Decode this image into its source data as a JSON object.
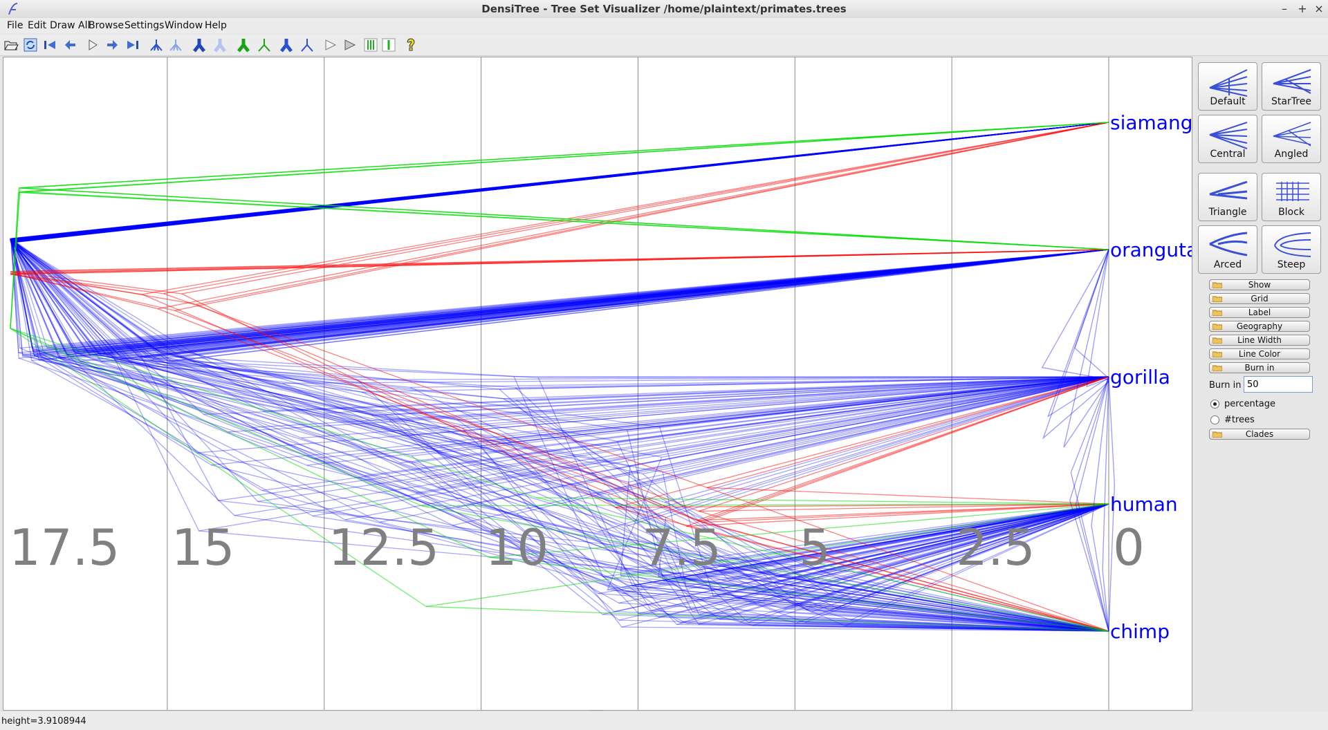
{
  "window": {
    "title": "DensiTree - Tree Set Visualizer /home/plaintext/primates.trees",
    "buttons": [
      "–",
      "+",
      "×"
    ]
  },
  "menu": [
    "File",
    "Edit",
    "Draw All",
    "Browse",
    "Settings",
    "Window",
    "Help"
  ],
  "toolbar_icons": [
    "open-folder-icon",
    "reload-icon",
    "first-tree-icon",
    "previous-tree-icon",
    "play-icon",
    "next-tree-icon",
    "last-tree-icon",
    "tree-blue-icon",
    "tree-light-blue-icon",
    "tree-dark-blue-icon",
    "tree-pale-blue-icon",
    "tree-green-icon",
    "tree-green-outline-icon",
    "tree-blue-root-icon",
    "tree-blue-outline-icon",
    "triangle-flat-icon",
    "triangle-gray-icon",
    "green-bars-icon",
    "green-line-icon",
    "help-icon"
  ],
  "chart": {
    "axis_ticks": [
      {
        "value": 17.5,
        "label": "17.5"
      },
      {
        "value": 15,
        "label": "15"
      },
      {
        "value": 12.5,
        "label": "12.5"
      },
      {
        "value": 10,
        "label": "10"
      },
      {
        "value": 7.5,
        "label": "7.5"
      },
      {
        "value": 5,
        "label": "5"
      },
      {
        "value": 2.5,
        "label": "2.5"
      },
      {
        "value": 0,
        "label": "0"
      }
    ],
    "taxa": [
      "siamang",
      "orangutan",
      "gorilla",
      "human",
      "chimp"
    ],
    "colors": {
      "main": "#0000ff",
      "alt1": "#ff0000",
      "alt2": "#00dd00",
      "tick_label": "#808080",
      "taxa_label": "#0000ff"
    }
  },
  "panel": {
    "shapes": [
      {
        "label": "Default",
        "icon": "default-tree-icon"
      },
      {
        "label": "StarTree",
        "icon": "star-tree-icon"
      },
      {
        "label": "Central",
        "icon": "central-tree-icon"
      },
      {
        "label": "Angled",
        "icon": "angled-tree-icon"
      }
    ],
    "styles": [
      {
        "label": "Triangle",
        "icon": "triangle-style-icon"
      },
      {
        "label": "Block",
        "icon": "block-style-icon"
      },
      {
        "label": "Arced",
        "icon": "arced-style-icon"
      },
      {
        "label": "Steep",
        "icon": "steep-style-icon"
      }
    ],
    "sections": [
      "Show",
      "Grid",
      "Label",
      "Geography",
      "Line Width",
      "Line Color",
      "Burn in"
    ],
    "burn_in": {
      "label": "Burn in",
      "value": "50",
      "options": [
        "percentage",
        "#trees"
      ],
      "selected": "percentage"
    },
    "clades_section": "Clades"
  },
  "status": "height=3.9108944"
}
